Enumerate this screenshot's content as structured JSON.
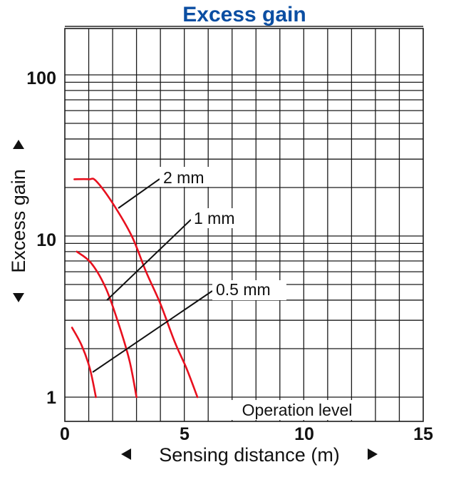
{
  "chart_data": {
    "type": "line",
    "title": "Excess gain",
    "xlabel": "Sensing distance (m)",
    "ylabel": "Excess gain",
    "x_scale": "linear",
    "y_scale": "log",
    "xlim": [
      0,
      15
    ],
    "ylim": [
      1,
      200
    ],
    "x_ticks": [
      "0",
      "5",
      "10",
      "15"
    ],
    "y_ticks": [
      "1",
      "10",
      "100"
    ],
    "grid": true,
    "series_color": "#e8101e",
    "title_color": "#0b4ea2",
    "series": [
      {
        "name": "0.5 mm",
        "points": [
          [
            0.3,
            2.7
          ],
          [
            0.7,
            2.1
          ],
          [
            1.05,
            1.5
          ],
          [
            1.3,
            1.0
          ]
        ]
      },
      {
        "name": "1 mm",
        "points": [
          [
            0.5,
            8.0
          ],
          [
            1.1,
            6.8
          ],
          [
            1.7,
            4.8
          ],
          [
            2.2,
            3.0
          ],
          [
            2.7,
            1.7
          ],
          [
            3.0,
            1.0
          ]
        ]
      },
      {
        "name": "2 mm",
        "points": [
          [
            0.4,
            22.5
          ],
          [
            1.0,
            22.5
          ],
          [
            1.3,
            22.0
          ],
          [
            2.0,
            16.0
          ],
          [
            2.8,
            10.0
          ],
          [
            3.4,
            6.0
          ],
          [
            4.0,
            3.8
          ],
          [
            4.6,
            2.2
          ],
          [
            5.1,
            1.5
          ],
          [
            5.55,
            1.0
          ]
        ]
      }
    ],
    "annotations": [
      "2 mm",
      "1 mm",
      "0.5 mm",
      "Operation level"
    ]
  }
}
